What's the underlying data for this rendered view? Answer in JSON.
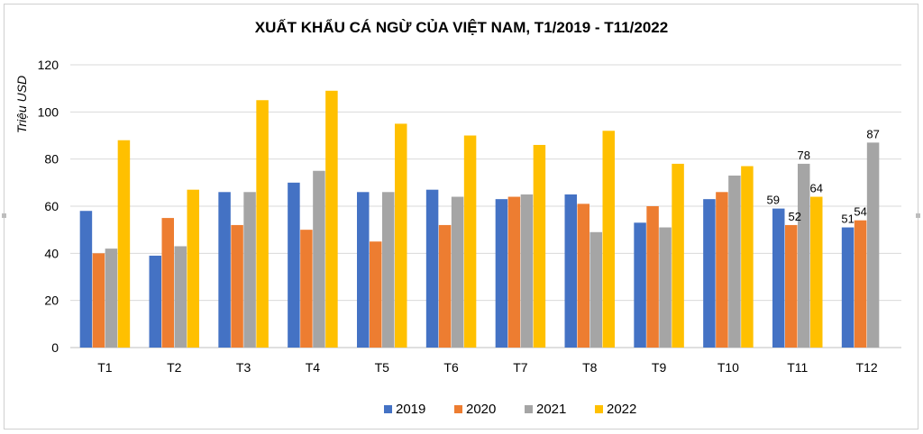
{
  "chart_data": {
    "type": "bar",
    "title": "XUẤT KHẨU CÁ NGỪ CỦA VIỆT NAM, T1/2019 - T11/2022",
    "xlabel": "",
    "ylabel": "Triệu USD",
    "ylim": [
      0,
      120
    ],
    "yticks": [
      0,
      20,
      40,
      60,
      80,
      100,
      120
    ],
    "grid": true,
    "legend": "bottom",
    "categories": [
      "T1",
      "T2",
      "T3",
      "T4",
      "T5",
      "T6",
      "T7",
      "T8",
      "T9",
      "T10",
      "T11",
      "T12"
    ],
    "series": [
      {
        "name": "2019",
        "color": "#4472C4",
        "values": [
          58,
          39,
          66,
          70,
          66,
          67,
          63,
          65,
          53,
          63,
          59,
          51
        ]
      },
      {
        "name": "2020",
        "color": "#ED7D31",
        "values": [
          40,
          55,
          52,
          50,
          45,
          52,
          64,
          61,
          60,
          66,
          52,
          54
        ]
      },
      {
        "name": "2021",
        "color": "#A5A5A5",
        "values": [
          42,
          43,
          66,
          75,
          66,
          64,
          65,
          49,
          51,
          73,
          78,
          87
        ]
      },
      {
        "name": "2022",
        "color": "#FFC000",
        "values": [
          88,
          67,
          105,
          109,
          95,
          90,
          86,
          92,
          78,
          77,
          64,
          null
        ]
      }
    ],
    "data_labels": [
      {
        "category": "T11",
        "series": "2019",
        "text": "59"
      },
      {
        "category": "T11",
        "series": "2020",
        "text": "52"
      },
      {
        "category": "T11",
        "series": "2021",
        "text": "78"
      },
      {
        "category": "T11",
        "series": "2022",
        "text": "64"
      },
      {
        "category": "T12",
        "series": "2019",
        "text": "51"
      },
      {
        "category": "T12",
        "series": "2020",
        "text": "54"
      },
      {
        "category": "T12",
        "series": "2021",
        "text": "87"
      }
    ]
  }
}
